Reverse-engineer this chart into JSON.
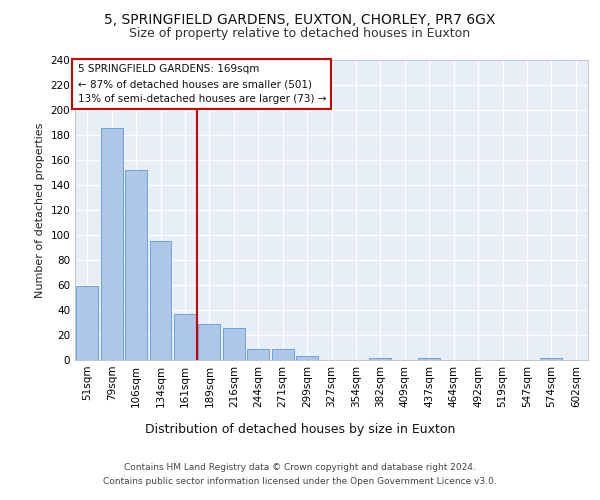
{
  "title1": "5, SPRINGFIELD GARDENS, EUXTON, CHORLEY, PR7 6GX",
  "title2": "Size of property relative to detached houses in Euxton",
  "xlabel": "Distribution of detached houses by size in Euxton",
  "ylabel": "Number of detached properties",
  "footer1": "Contains HM Land Registry data © Crown copyright and database right 2024.",
  "footer2": "Contains public sector information licensed under the Open Government Licence v3.0.",
  "annotation_line1": "5 SPRINGFIELD GARDENS: 169sqm",
  "annotation_line2": "← 87% of detached houses are smaller (501)",
  "annotation_line3": "13% of semi-detached houses are larger (73) →",
  "bar_color": "#aec6e8",
  "bar_edge_color": "#5b9bd5",
  "vline_color": "#cc0000",
  "vline_x": 4.5,
  "categories": [
    "51sqm",
    "79sqm",
    "106sqm",
    "134sqm",
    "161sqm",
    "189sqm",
    "216sqm",
    "244sqm",
    "271sqm",
    "299sqm",
    "327sqm",
    "354sqm",
    "382sqm",
    "409sqm",
    "437sqm",
    "464sqm",
    "492sqm",
    "519sqm",
    "547sqm",
    "574sqm",
    "602sqm"
  ],
  "values": [
    59,
    186,
    152,
    95,
    37,
    29,
    26,
    9,
    9,
    3,
    0,
    0,
    2,
    0,
    2,
    0,
    0,
    0,
    0,
    2,
    0
  ],
  "ylim": [
    0,
    240
  ],
  "yticks": [
    0,
    20,
    40,
    60,
    80,
    100,
    120,
    140,
    160,
    180,
    200,
    220,
    240
  ],
  "bg_color": "#e8eef8",
  "grid_color": "#ffffff",
  "title_fontsize": 10,
  "subtitle_fontsize": 9,
  "tick_fontsize": 7.5,
  "ylabel_fontsize": 8,
  "xlabel_fontsize": 9,
  "annot_box_color": "#ffffff",
  "annot_box_edge": "#cc0000",
  "annot_fontsize": 7.5,
  "footer_fontsize": 6.5
}
